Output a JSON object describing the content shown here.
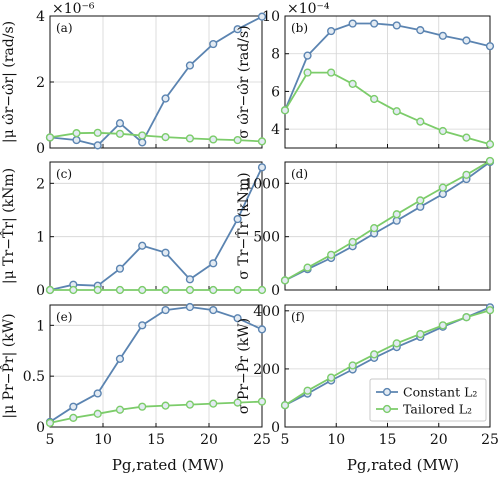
{
  "colors": {
    "constant": "#5b84b1",
    "tailored": "#7ccc6a"
  },
  "legend": {
    "location": "lower-right-of-panel-f",
    "entries": [
      {
        "key": "constant",
        "label": "Constant L₂"
      },
      {
        "key": "tailored",
        "label": "Tailored L₂"
      }
    ]
  },
  "chart_data": [
    {
      "id": "a",
      "type": "line",
      "panel_label": "(a)",
      "ylabel": "|μ ω̂r−ω̂r| (rad/s)",
      "exponent_label": "×10⁻⁶",
      "ylim": [
        0,
        4
      ],
      "yticks": [
        0,
        2,
        4
      ],
      "xlim": [
        5,
        25
      ],
      "x": [
        5,
        7.5,
        9.5,
        11.6,
        13.7,
        15.9,
        18.2,
        20.4,
        22.7,
        25
      ],
      "series": [
        {
          "key": "constant",
          "name": "Constant L₂",
          "values": [
            0.32,
            0.24,
            0.08,
            0.75,
            0.17,
            1.5,
            2.5,
            3.15,
            3.6,
            3.98
          ]
        },
        {
          "key": "tailored",
          "name": "Tailored L₂",
          "values": [
            0.32,
            0.45,
            0.46,
            0.43,
            0.38,
            0.33,
            0.29,
            0.26,
            0.24,
            0.2
          ]
        }
      ]
    },
    {
      "id": "b",
      "type": "line",
      "panel_label": "(b)",
      "ylabel": "σ ω̂r−ω̂r (rad/s)",
      "exponent_label": "×10⁻⁴",
      "ylim": [
        3,
        10
      ],
      "yticks": [
        4,
        6,
        8,
        10
      ],
      "xlim": [
        5,
        25
      ],
      "x": [
        5,
        7.2,
        9.5,
        11.6,
        13.7,
        15.9,
        18.2,
        20.4,
        22.7,
        25
      ],
      "series": [
        {
          "key": "constant",
          "name": "Constant L₂",
          "values": [
            5.0,
            7.9,
            9.2,
            9.6,
            9.6,
            9.5,
            9.25,
            8.95,
            8.7,
            8.4
          ]
        },
        {
          "key": "tailored",
          "name": "Tailored L₂",
          "values": [
            5.0,
            7.0,
            7.0,
            6.4,
            5.6,
            4.95,
            4.4,
            3.9,
            3.55,
            3.2
          ]
        }
      ]
    },
    {
      "id": "c",
      "type": "line",
      "panel_label": "(c)",
      "ylabel": "|μ Tr−T̂r| (kNm)",
      "ylim": [
        0,
        2.4
      ],
      "yticks": [
        0,
        1,
        2
      ],
      "xlim": [
        5,
        25
      ],
      "x": [
        5,
        7.2,
        9.5,
        11.6,
        13.7,
        15.9,
        18.2,
        20.4,
        22.7,
        25
      ],
      "series": [
        {
          "key": "constant",
          "name": "Constant L₂",
          "values": [
            0.0,
            0.1,
            0.08,
            0.4,
            0.83,
            0.7,
            0.2,
            0.5,
            1.33,
            2.3
          ]
        },
        {
          "key": "tailored",
          "name": "Tailored L₂",
          "values": [
            0.0,
            0.0,
            0.0,
            0.0,
            0.0,
            0.0,
            0.0,
            0.0,
            0.0,
            0.0
          ]
        }
      ]
    },
    {
      "id": "d",
      "type": "line",
      "panel_label": "(d)",
      "ylabel": "σ Tr−T̂r (kNm)",
      "ylim": [
        0,
        1200
      ],
      "yticks": [
        0,
        500,
        1000
      ],
      "xlim": [
        5,
        25
      ],
      "x": [
        5,
        7.2,
        9.5,
        11.6,
        13.7,
        15.9,
        18.2,
        20.4,
        22.7,
        25
      ],
      "series": [
        {
          "key": "constant",
          "name": "Constant L₂",
          "values": [
            90,
            195,
            300,
            410,
            530,
            650,
            780,
            900,
            1040,
            1200
          ]
        },
        {
          "key": "tailored",
          "name": "Tailored L₂",
          "values": [
            90,
            210,
            330,
            450,
            580,
            710,
            840,
            960,
            1080,
            1210
          ]
        }
      ]
    },
    {
      "id": "e",
      "type": "line",
      "panel_label": "(e)",
      "ylabel": "|μ Pr−P̂r| (kW)",
      "ylim": [
        0,
        1.2
      ],
      "yticks": [
        0,
        0.5,
        1
      ],
      "xlim": [
        5,
        25
      ],
      "x": [
        5,
        7.2,
        9.5,
        11.6,
        13.7,
        15.9,
        18.2,
        20.4,
        22.7,
        25
      ],
      "series": [
        {
          "key": "constant",
          "name": "Constant L₂",
          "values": [
            0.05,
            0.2,
            0.33,
            0.67,
            1.0,
            1.15,
            1.18,
            1.15,
            1.07,
            0.96
          ]
        },
        {
          "key": "tailored",
          "name": "Tailored L₂",
          "values": [
            0.04,
            0.09,
            0.13,
            0.17,
            0.2,
            0.21,
            0.22,
            0.23,
            0.24,
            0.25
          ]
        }
      ]
    },
    {
      "id": "f",
      "type": "line",
      "panel_label": "(f)",
      "ylabel": "σ Pr−P̂r (kW)",
      "ylim": [
        0,
        420
      ],
      "yticks": [
        0,
        200,
        400
      ],
      "xlim": [
        5,
        25
      ],
      "x": [
        5,
        7.2,
        9.5,
        11.6,
        13.7,
        15.9,
        18.2,
        20.4,
        22.7,
        25
      ],
      "series": [
        {
          "key": "constant",
          "name": "Constant L₂",
          "values": [
            75,
            115,
            160,
            198,
            238,
            275,
            310,
            345,
            378,
            412
          ]
        },
        {
          "key": "tailored",
          "name": "Tailored L₂",
          "values": [
            75,
            125,
            170,
            212,
            250,
            288,
            320,
            350,
            378,
            402
          ]
        }
      ]
    }
  ],
  "shared_xaxis": {
    "label": "Pg,rated (MW)",
    "ticks": [
      5,
      10,
      15,
      20,
      25
    ]
  }
}
